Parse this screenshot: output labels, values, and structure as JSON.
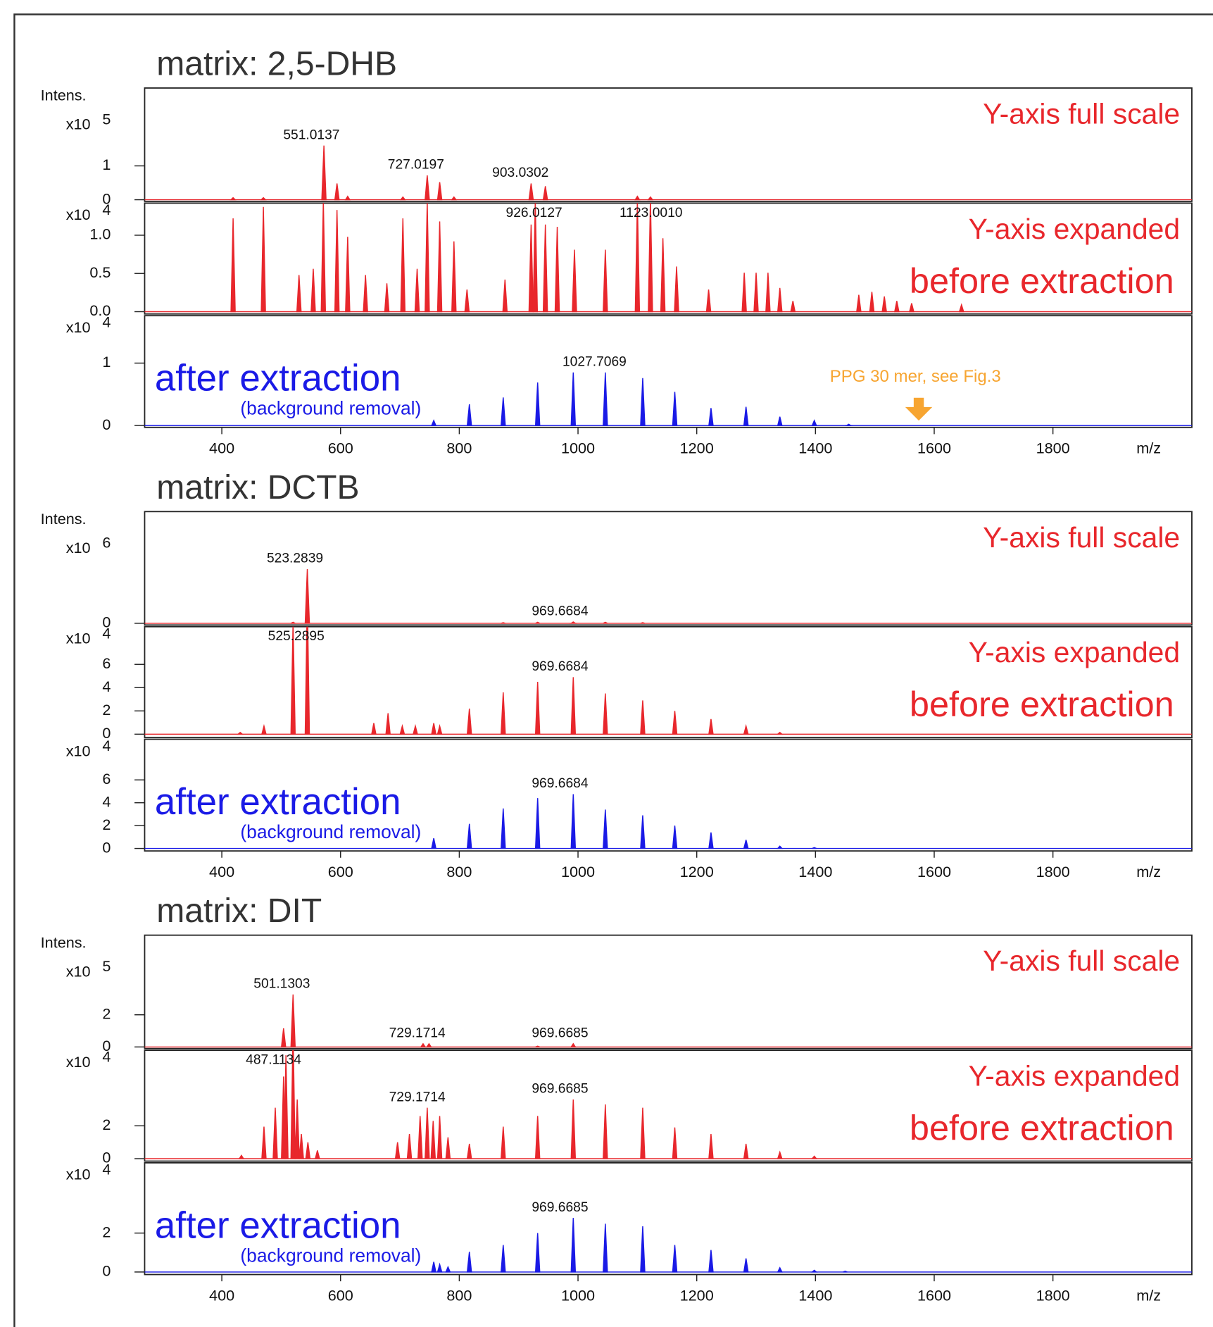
{
  "chart_data": [
    {
      "type": "spectrum",
      "title": "matrix: 2,5-DHB",
      "y_label": "Intens.",
      "x_label": "m/z",
      "xlim": [
        270,
        2034
      ],
      "xticks": [
        400,
        600,
        800,
        1000,
        1200,
        1400,
        1600,
        1800
      ],
      "panels": [
        {
          "scale": "x10",
          "exponent": "5",
          "color": "#e8272c",
          "ylim": [
            -0.05,
            3.3
          ],
          "yticks": [
            0,
            1
          ],
          "scale_note": "Y-axis full scale",
          "x": [
            419,
            470,
            572,
            594,
            612,
            705,
            746,
            767,
            791,
            921,
            945,
            1100,
            1122
          ],
          "values": [
            0.06,
            0.06,
            1.6,
            0.48,
            0.1,
            0.08,
            0.72,
            0.52,
            0.08,
            0.48,
            0.4,
            0.1,
            0.08
          ],
          "peak_labels": [
            "551.0137",
            "727.0197",
            "903.0302"
          ]
        },
        {
          "scale": "x10",
          "exponent": "4",
          "color": "#e8272c",
          "ylim": [
            -0.03,
            1.42
          ],
          "yticks": [
            {
              "value": 0,
              "label": "0.0"
            },
            {
              "value": 0.5,
              "label": "0.5"
            },
            {
              "value": 1,
              "label": "1.0"
            }
          ],
          "scale_note": "Y-axis expanded",
          "state_note": "before extraction",
          "x": [
            419,
            470,
            530,
            554,
            571,
            594,
            612,
            642,
            678,
            705,
            729,
            746,
            767,
            791,
            813,
            877,
            921,
            928,
            945,
            965,
            994,
            1046,
            1100,
            1122,
            1143,
            1166,
            1220,
            1280,
            1300,
            1320,
            1340,
            1362,
            1473,
            1495,
            1516,
            1537,
            1562,
            1646
          ],
          "values": [
            1.22,
            1.37,
            0.48,
            0.56,
            1.45,
            1.33,
            0.98,
            0.48,
            0.37,
            1.22,
            0.56,
            1.45,
            1.18,
            0.92,
            0.29,
            0.42,
            1.14,
            1.45,
            1.14,
            1.11,
            0.81,
            0.81,
            1.45,
            1.5,
            0.96,
            0.59,
            0.29,
            0.51,
            0.51,
            0.51,
            0.31,
            0.14,
            0.22,
            0.26,
            0.2,
            0.14,
            0.11,
            0.09
          ],
          "peak_labels": [
            "926.0127",
            "1123.0010"
          ]
        },
        {
          "scale": "x10",
          "exponent": "4",
          "color": "#1a1ae6",
          "ylim": [
            -0.03,
            1.76
          ],
          "yticks": [
            0,
            1
          ],
          "state_note": "after extraction",
          "method_note": "(background removal)",
          "x": [
            757,
            817,
            874,
            932,
            992,
            1046,
            1109,
            1163,
            1224,
            1283,
            1340,
            1398,
            1456
          ],
          "values": [
            0.08,
            0.34,
            0.45,
            0.69,
            0.85,
            0.85,
            0.76,
            0.54,
            0.28,
            0.3,
            0.14,
            0.08,
            0.02
          ],
          "peak_labels": [
            "1027.7069"
          ],
          "annotation": {
            "text": "PPG 30 mer, see Fig.3",
            "x": 1574,
            "color": "#f7a531"
          }
        }
      ]
    },
    {
      "type": "spectrum",
      "title": "matrix: DCTB",
      "y_label": "Intens.",
      "x_label": "m/z",
      "xlim": [
        270,
        2034
      ],
      "xticks": [
        400,
        600,
        800,
        1000,
        1200,
        1400,
        1600,
        1800
      ],
      "panels": [
        {
          "scale": "x10",
          "exponent": "6",
          "color": "#e8272c",
          "ylim": [
            -0.05,
            3.3
          ],
          "yticks": [
            0
          ],
          "scale_note": "Y-axis full scale",
          "x": [
            520,
            544,
            874,
            932,
            992,
            1046,
            1109
          ],
          "values": [
            0.03,
            1.6,
            0.02,
            0.03,
            0.04,
            0.03,
            0.02
          ],
          "peak_labels": [
            "523.2839",
            "969.6684"
          ]
        },
        {
          "scale": "x10",
          "exponent": "4",
          "color": "#e8272c",
          "ylim": [
            -0.29,
            9.24
          ],
          "yticks": [
            0,
            2,
            4,
            6
          ],
          "scale_note": "Y-axis expanded",
          "state_note": "before extraction",
          "x": [
            431,
            471,
            520,
            544,
            656,
            680,
            704,
            726,
            757,
            767,
            817,
            874,
            932,
            992,
            1046,
            1109,
            1163,
            1224,
            1283,
            1340
          ],
          "values": [
            0.15,
            0.7,
            9.7,
            12,
            0.95,
            1.8,
            0.7,
            0.7,
            0.95,
            0.7,
            2.2,
            3.6,
            4.5,
            4.9,
            3.5,
            2.9,
            2.0,
            1.3,
            0.7,
            0.15
          ],
          "peak_labels": [
            "525.2895",
            "969.6684"
          ]
        },
        {
          "scale": "x10",
          "exponent": "4",
          "color": "#1a1ae6",
          "ylim": [
            -0.22,
            9.56
          ],
          "yticks": [
            0,
            2,
            4,
            6
          ],
          "state_note": "after extraction",
          "method_note": "(background removal)",
          "x": [
            757,
            817,
            874,
            932,
            992,
            1046,
            1109,
            1163,
            1224,
            1283,
            1340,
            1398
          ],
          "values": [
            0.9,
            2.15,
            3.5,
            4.4,
            4.75,
            3.4,
            2.9,
            2.0,
            1.4,
            0.75,
            0.2,
            0.07
          ],
          "peak_labels": [
            "969.6684"
          ]
        }
      ]
    },
    {
      "type": "spectrum",
      "title": "matrix: DIT",
      "y_label": "Intens.",
      "x_label": "m/z",
      "xlim": [
        270,
        2034
      ],
      "xticks": [
        400,
        600,
        800,
        1000,
        1200,
        1400,
        1600,
        1800
      ],
      "panels": [
        {
          "scale": "x10",
          "exponent": "5",
          "color": "#e8272c",
          "ylim": [
            -0.1,
            6.95
          ],
          "yticks": [
            0,
            2
          ],
          "scale_note": "Y-axis full scale",
          "x": [
            504,
            520,
            739,
            749,
            932,
            992
          ],
          "values": [
            1.16,
            3.26,
            0.2,
            0.2,
            0.05,
            0.2
          ],
          "peak_labels": [
            "501.1303",
            "729.1714",
            "969.6685"
          ]
        },
        {
          "scale": "x10",
          "exponent": "4",
          "color": "#e8272c",
          "ylim": [
            -0.15,
            6.6
          ],
          "yticks": [
            0,
            2
          ],
          "scale_note": "Y-axis expanded",
          "state_note": "before extraction",
          "x": [
            433,
            471,
            490,
            504,
            508,
            520,
            527,
            534,
            545,
            561,
            696,
            716,
            734,
            746,
            756,
            767,
            781,
            817,
            874,
            932,
            992,
            1046,
            1109,
            1163,
            1224,
            1283,
            1340,
            1398
          ],
          "values": [
            0.2,
            1.95,
            3.1,
            5.0,
            6.3,
            8,
            3.6,
            1.5,
            1.0,
            0.5,
            1.0,
            1.5,
            2.6,
            3.1,
            2.3,
            2.6,
            1.3,
            0.9,
            1.95,
            2.6,
            3.6,
            3.3,
            3.1,
            1.9,
            1.5,
            0.9,
            0.4,
            0.15
          ],
          "peak_labels": [
            "487.1134",
            "729.1714",
            "969.6685"
          ]
        },
        {
          "scale": "x10",
          "exponent": "4",
          "color": "#1a1ae6",
          "ylim": [
            -0.13,
            5.61
          ],
          "yticks": [
            0,
            2
          ],
          "state_note": "after extraction",
          "method_note": "(background removal)",
          "x": [
            757,
            767,
            781,
            817,
            874,
            932,
            992,
            1046,
            1109,
            1163,
            1224,
            1283,
            1340,
            1398,
            1450
          ],
          "values": [
            0.52,
            0.39,
            0.26,
            1.04,
            1.39,
            2.0,
            2.78,
            2.48,
            2.35,
            1.39,
            1.13,
            0.7,
            0.22,
            0.09,
            0.04
          ],
          "peak_labels": [
            "969.6685"
          ]
        }
      ]
    }
  ]
}
